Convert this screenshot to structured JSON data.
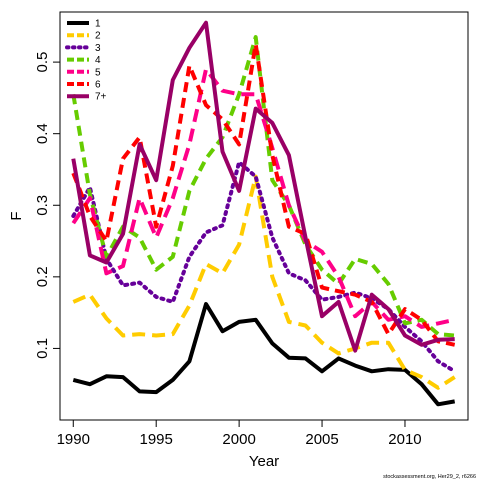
{
  "chart_data": {
    "type": "line",
    "xlabel": "Year",
    "ylabel": "F",
    "xlim": [
      1989.2,
      2013.8
    ],
    "ylim": [
      0.0,
      0.57
    ],
    "x_ticks": [
      1990,
      1995,
      2000,
      2005,
      2010
    ],
    "y_ticks": [
      0.1,
      0.2,
      0.3,
      0.4,
      0.5
    ],
    "x_tick_labels": [
      "1990",
      "1995",
      "2000",
      "2005",
      "2010"
    ],
    "y_tick_labels": [
      "0.1",
      "0.2",
      "0.3",
      "0.4",
      "0.5"
    ],
    "grid": false,
    "legend_position": "top-left",
    "footnote": "stockassessment.org, Her29_2, r6266",
    "x": [
      1990,
      1991,
      1992,
      1993,
      1994,
      1995,
      1996,
      1997,
      1998,
      1999,
      2000,
      2001,
      2002,
      2003,
      2004,
      2005,
      2006,
      2007,
      2008,
      2009,
      2010,
      2011,
      2012,
      2013
    ],
    "series": [
      {
        "name": "1",
        "color": "#000000",
        "dash": "solid",
        "values": [
          0.056,
          0.05,
          0.061,
          0.06,
          0.04,
          0.039,
          0.056,
          0.082,
          0.162,
          0.124,
          0.137,
          0.14,
          0.107,
          0.087,
          0.086,
          0.068,
          0.086,
          0.076,
          0.068,
          0.071,
          0.07,
          0.05,
          0.022,
          0.026
        ]
      },
      {
        "name": "2",
        "color": "#FFCC00",
        "dash": "long",
        "values": [
          0.165,
          0.175,
          0.142,
          0.118,
          0.12,
          0.118,
          0.12,
          0.16,
          0.218,
          0.205,
          0.245,
          0.34,
          0.2,
          0.137,
          0.132,
          0.108,
          0.093,
          0.1,
          0.108,
          0.108,
          0.07,
          0.06,
          0.045,
          0.06
        ]
      },
      {
        "name": "3",
        "color": "#660099",
        "dash": "dot",
        "values": [
          0.285,
          0.325,
          0.225,
          0.188,
          0.192,
          0.172,
          0.165,
          0.228,
          0.262,
          0.272,
          0.36,
          0.34,
          0.255,
          0.205,
          0.195,
          0.168,
          0.172,
          0.178,
          0.17,
          0.155,
          0.13,
          0.11,
          0.082,
          0.068
        ]
      },
      {
        "name": "4",
        "color": "#66CC00",
        "dash": "dash",
        "values": [
          0.455,
          0.315,
          0.228,
          0.27,
          0.255,
          0.21,
          0.228,
          0.32,
          0.365,
          0.395,
          0.455,
          0.535,
          0.335,
          0.3,
          0.245,
          0.21,
          0.19,
          0.225,
          0.218,
          0.19,
          0.135,
          0.14,
          0.12,
          0.118
        ]
      },
      {
        "name": "5",
        "color": "#FF0088",
        "dash": "long",
        "values": [
          0.275,
          0.31,
          0.205,
          0.215,
          0.31,
          0.255,
          0.31,
          0.385,
          0.49,
          0.46,
          0.455,
          0.455,
          0.38,
          0.3,
          0.25,
          0.235,
          0.2,
          0.145,
          0.165,
          0.14,
          0.145,
          0.13,
          0.135,
          0.14
        ]
      },
      {
        "name": "6",
        "color": "#FF0000",
        "dash": "dash",
        "values": [
          0.345,
          0.285,
          0.25,
          0.365,
          0.395,
          0.27,
          0.355,
          0.495,
          0.44,
          0.42,
          0.385,
          0.525,
          0.37,
          0.27,
          0.26,
          0.185,
          0.18,
          0.175,
          0.165,
          0.12,
          0.155,
          0.14,
          0.11,
          0.105
        ]
      },
      {
        "name": "7+",
        "color": "#990066",
        "dash": "solid",
        "values": [
          0.365,
          0.23,
          0.22,
          0.26,
          0.385,
          0.335,
          0.475,
          0.52,
          0.555,
          0.375,
          0.32,
          0.435,
          0.415,
          0.37,
          0.255,
          0.145,
          0.165,
          0.097,
          0.175,
          0.155,
          0.118,
          0.105,
          0.112,
          0.113
        ]
      }
    ]
  }
}
